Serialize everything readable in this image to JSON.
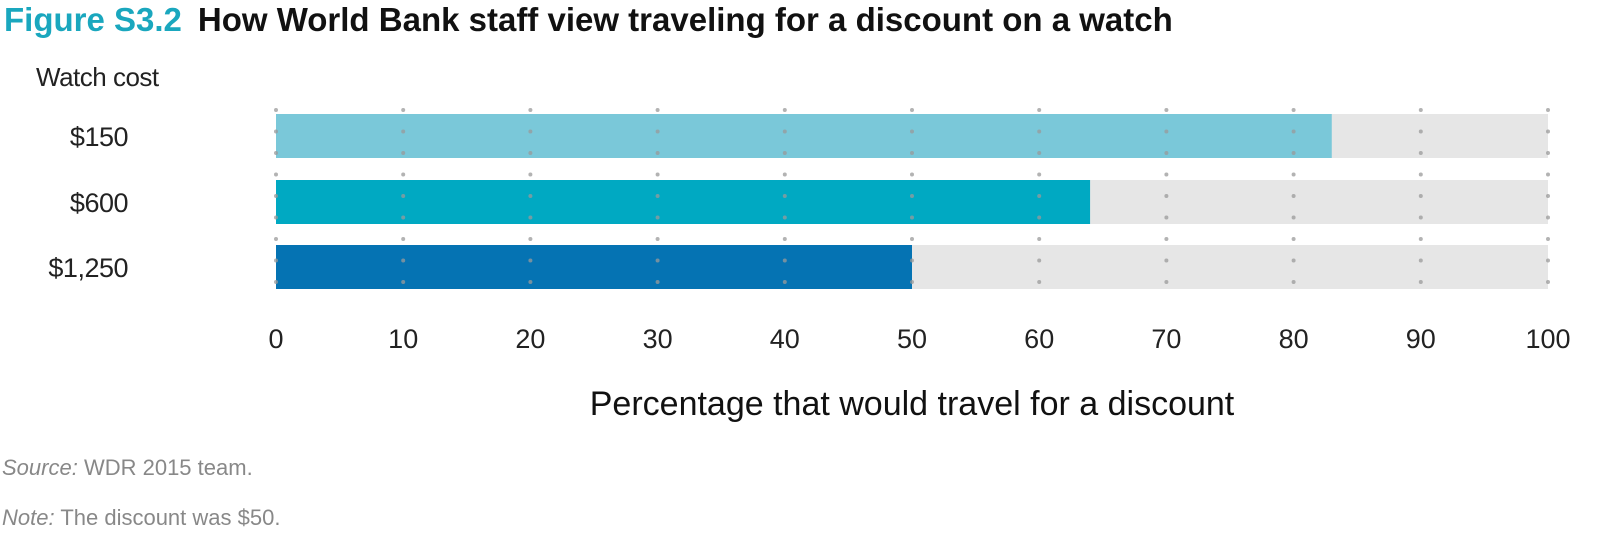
{
  "figure_label": "Figure S3.2",
  "figure_title": "How World Bank staff view traveling for a discount on a watch",
  "source_label": "Source:",
  "source_text": "WDR 2015 team.",
  "note_label": "Note:",
  "note_text": "The discount was $50.",
  "chart_data": {
    "type": "bar",
    "orientation": "horizontal",
    "category_axis_title": "Watch cost",
    "categories": [
      "$150",
      "$600",
      "$1,250"
    ],
    "values": [
      83,
      64,
      50
    ],
    "xlabel": "Percentage that would travel for a discount",
    "xlim": [
      0,
      100
    ],
    "xticks": [
      0,
      10,
      20,
      30,
      40,
      50,
      60,
      70,
      80,
      90,
      100
    ],
    "background_bar_max": 100,
    "grid": "dotted vertical",
    "colors": [
      "#7ac8d9",
      "#00a9c2",
      "#0573b3"
    ],
    "background_color": "#e6e6e6",
    "grid_color": "#9a9a9a"
  }
}
